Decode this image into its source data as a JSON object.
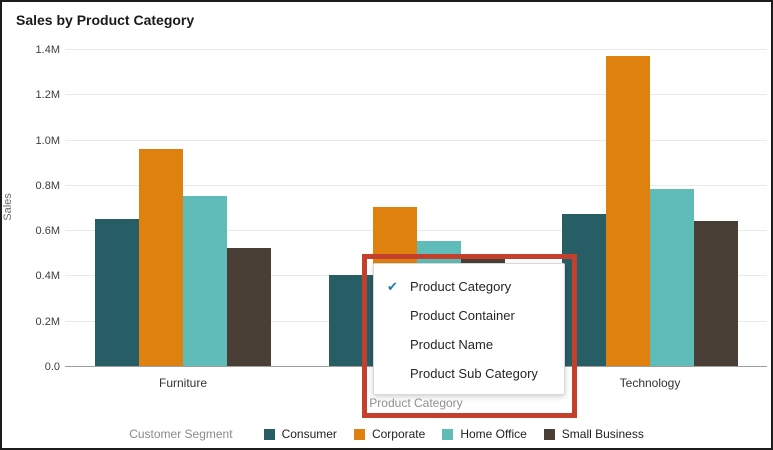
{
  "title": "Sales by Product Category",
  "chart_data": {
    "type": "bar",
    "title": "Sales by Product Category",
    "xlabel": "Product Category",
    "ylabel": "Sales",
    "unit": "M",
    "ylim": [
      0,
      1.4
    ],
    "y_ticks": [
      "0.0",
      "0.2M",
      "0.4M",
      "0.6M",
      "0.8M",
      "1.0M",
      "1.2M",
      "1.4M"
    ],
    "grid": true,
    "legend_position": "bottom",
    "legend_title": "Customer Segment",
    "categories": [
      "Furniture",
      "",
      "Technology"
    ],
    "series": [
      {
        "name": "Consumer",
        "color": "#275e66",
        "values": [
          0.65,
          0.4,
          0.67
        ]
      },
      {
        "name": "Corporate",
        "color": "#de810e",
        "values": [
          0.96,
          0.7,
          1.37
        ]
      },
      {
        "name": "Home Office",
        "color": "#5fbcb8",
        "values": [
          0.75,
          0.55,
          0.78
        ]
      },
      {
        "name": "Small Business",
        "color": "#4a3f36",
        "values": [
          0.52,
          0.48,
          0.64
        ]
      }
    ]
  },
  "dropdown": {
    "check_icon": "✔",
    "check_color": "#1f7fa8",
    "items": [
      {
        "label": "Product Category",
        "selected": true
      },
      {
        "label": "Product Container",
        "selected": false
      },
      {
        "label": "Product Name",
        "selected": false
      },
      {
        "label": "Product Sub Category",
        "selected": false
      }
    ]
  },
  "axis_field_label": "Product Category",
  "annotation": {
    "color": "#c2402c"
  }
}
